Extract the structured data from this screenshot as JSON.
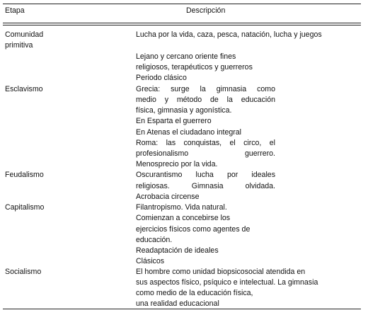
{
  "header": {
    "etapa": "Etapa",
    "descripcion": "Descripción"
  },
  "stages": {
    "comunidad_1": "Comunidad",
    "comunidad_2": "primitiva",
    "esclavismo": "Esclavismo",
    "feudalismo": "Feudalismo",
    "capitalismo": "Capitalismo",
    "socialismo": "Socialismo"
  },
  "lines": [
    "Lucha por la vida, caza, pesca, natación, lucha y juegos",
    "Lejano y cercano oriente fines",
    "religiosos, terapéuticos y guerreros",
    "Periodo clásico",
    "Grecia: surge la gimnasia como",
    "medio y método de la educación",
    "física, gimnasia y agonística.",
    "En Esparta el guerrero",
    "En Atenas el ciudadano integral",
    "Roma: las conquistas, el circo, el",
    "profesionalismo guerrero.",
    "Menosprecio por la vida.",
    "Oscurantismo lucha por ideales",
    "religiosas. Gimnasia olvidada.",
    "Acrobacia circense",
    "Filantropismo. Vida natural.",
    "Comienzan a concebirse los",
    "ejercicios físicos como agentes de",
    "educación.",
    "Readaptación de ideales",
    "Clásicos",
    "El hombre como unidad biopsicosocial atendida en",
    "sus aspectos físico, psíquico e intelectual. La gimnasia",
    "como medio de la educación física,",
    "una realidad educacional"
  ]
}
